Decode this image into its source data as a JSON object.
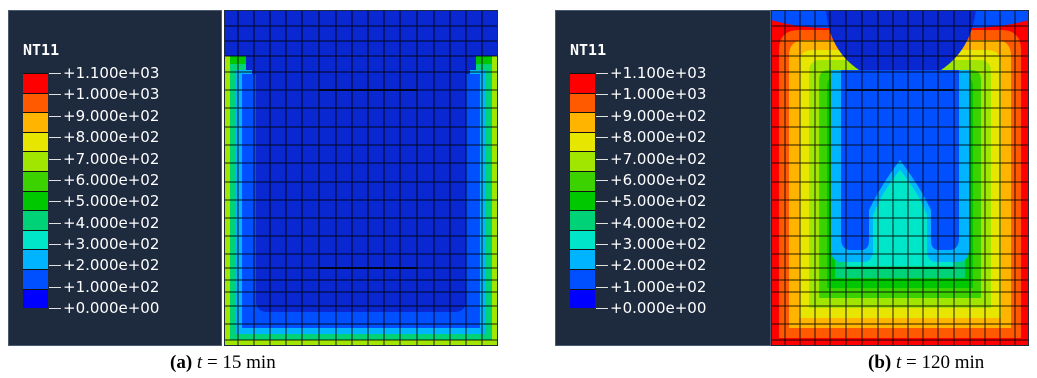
{
  "panels": [
    {
      "legend_title": "NT11",
      "caption_letter": "(a)",
      "caption_var": "t",
      "caption_rest": " = 15 min"
    },
    {
      "legend_title": "NT11",
      "caption_letter": "(b)",
      "caption_var": "t",
      "caption_rest": " = 120 min"
    }
  ],
  "legend_labels": [
    "+1.100e+03",
    "+1.000e+03",
    "+9.000e+02",
    "+8.000e+02",
    "+7.000e+02",
    "+6.000e+02",
    "+5.000e+02",
    "+4.000e+02",
    "+3.000e+02",
    "+2.000e+02",
    "+1.000e+02",
    "+0.000e+00"
  ],
  "legend_colors": [
    "#ff0000",
    "#ff5a00",
    "#ffb400",
    "#e6e600",
    "#a0e600",
    "#3cd200",
    "#00c800",
    "#00d278",
    "#00e6c8",
    "#00b4ff",
    "#0050ff",
    "#0000ff"
  ],
  "colors": {
    "cold": "#0a28d2",
    "legend_bg": "#1e2a3e"
  }
}
